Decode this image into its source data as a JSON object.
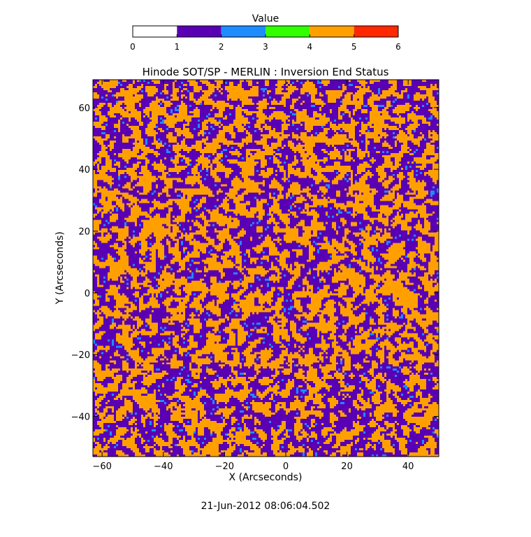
{
  "chart_data": {
    "type": "heatmap",
    "title": "Hinode SOT/SP - MERLIN : Inversion End Status",
    "xlabel": "X (Arcseconds)",
    "ylabel": "Y (Arcseconds)",
    "xlim": [
      -63,
      50
    ],
    "ylim": [
      -53,
      69
    ],
    "x_ticks": [
      -60,
      -40,
      -20,
      0,
      20,
      40
    ],
    "y_ticks": [
      -40,
      -20,
      0,
      20,
      40,
      60
    ],
    "x_tick_labels": [
      "−60",
      "−40",
      "−20",
      "0",
      "20",
      "40"
    ],
    "y_tick_labels": [
      "−40",
      "−20",
      "0",
      "20",
      "40",
      "60"
    ],
    "colorbar": {
      "label": "Value",
      "range": [
        0,
        6
      ],
      "ticks": [
        "0",
        "1",
        "2",
        "3",
        "4",
        "5",
        "6"
      ],
      "colors": [
        "#ffffff",
        "#5a00b4",
        "#1e8cff",
        "#32ff00",
        "#ffa000",
        "#ff2800"
      ]
    },
    "value_distribution": {
      "dominant_values": [
        1,
        4
      ],
      "minor_values": [
        2
      ],
      "approx_fraction": {
        "1": 0.4,
        "2": 0.04,
        "4": 0.56
      }
    },
    "timestamp": "21-Jun-2012 08:06:04.502"
  }
}
